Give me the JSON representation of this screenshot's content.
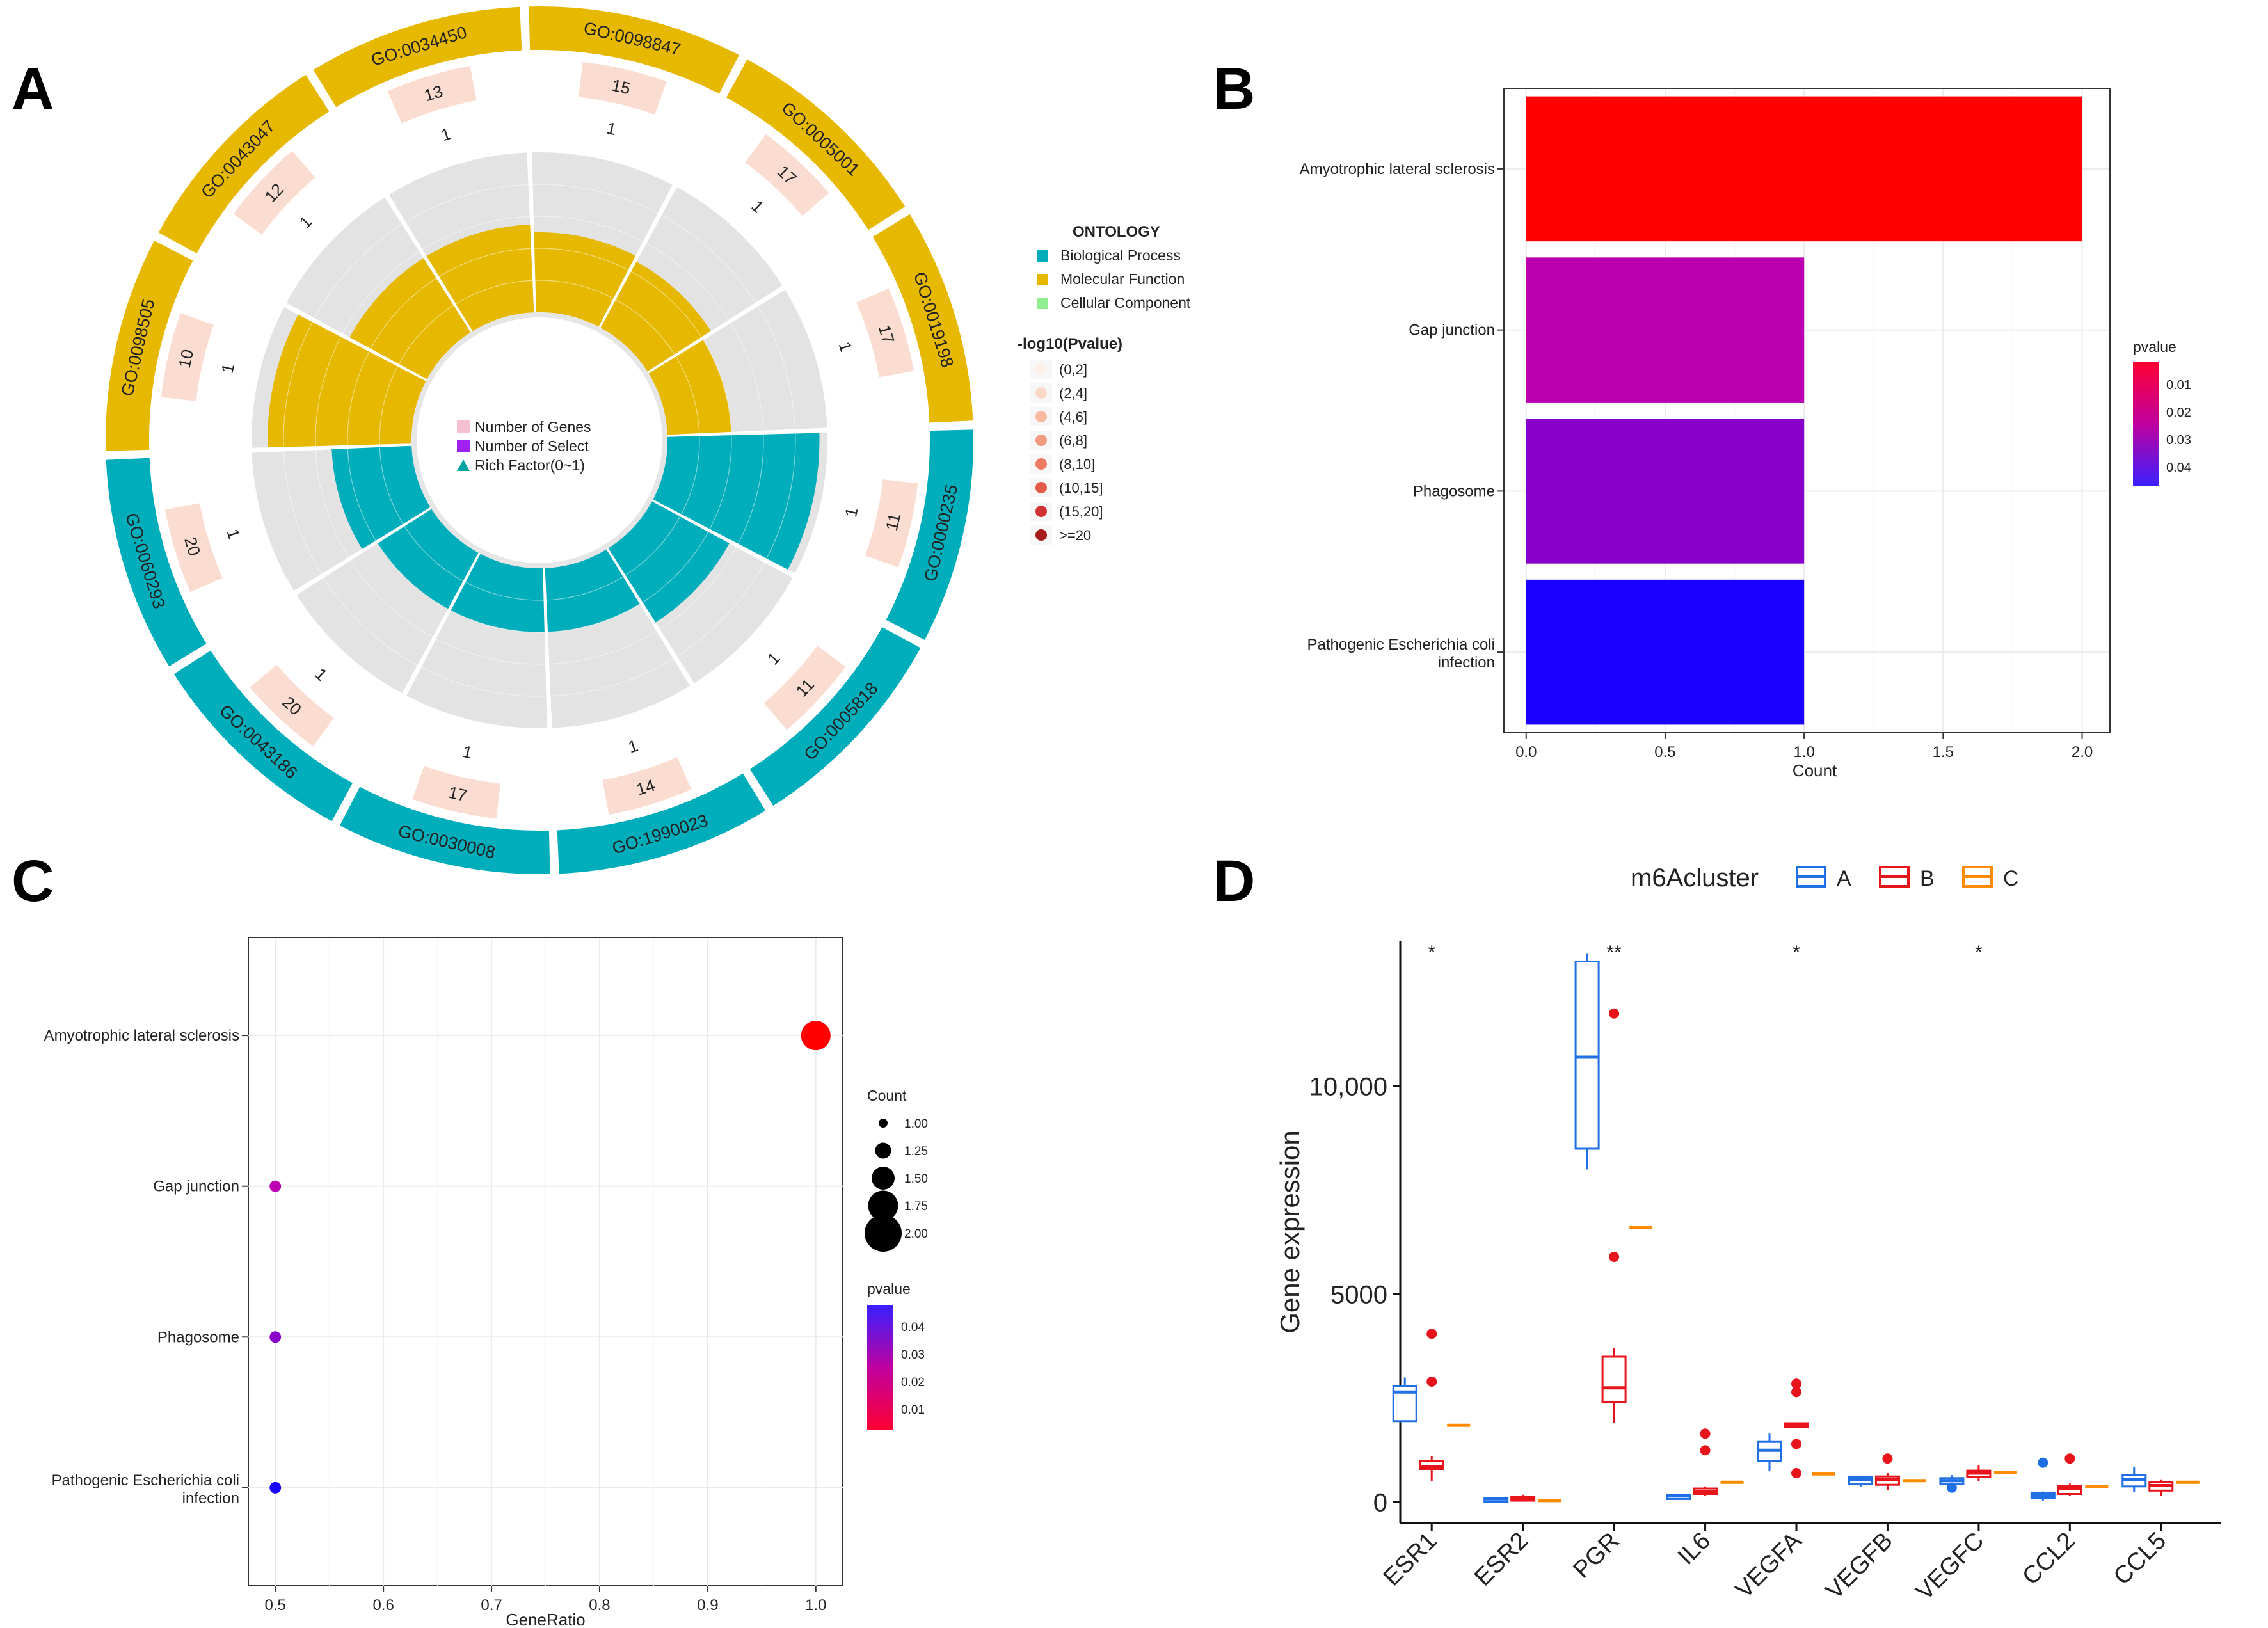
{
  "panels": {
    "A": "A",
    "B": "B",
    "C": "C",
    "D": "D"
  },
  "colors": {
    "bp": "#00adba",
    "mf": "#e6b800",
    "cc": "#90ee90",
    "ring_bg": "#e3e3e3",
    "gene_band": "#fbdcd0",
    "grid": "#ebebeb"
  },
  "chart_data": [
    {
      "type": "circular-go-plot",
      "panel": "A",
      "categories": [
        "GO:0098847",
        "GO:0005001",
        "GO:0019198",
        "GO:0000235",
        "GO:0005818",
        "GO:1990023",
        "GO:0030008",
        "GO:0043186",
        "GO:0060293",
        "GO:0098505",
        "GO:0043047",
        "GO:0034450"
      ],
      "ontology": [
        "MF",
        "MF",
        "MF",
        "BP",
        "BP",
        "BP",
        "BP",
        "BP",
        "BP",
        "MF",
        "MF",
        "MF"
      ],
      "number_of_genes": [
        "15",
        "17",
        "17",
        "11",
        "11",
        "14",
        "17",
        "20",
        "20",
        "10",
        "12",
        "13"
      ],
      "number_of_select": [
        "1",
        "1",
        "1",
        "1",
        "1",
        "1",
        "1",
        "1",
        "1",
        "1",
        "1",
        "1"
      ],
      "rich_factor": [
        0.5,
        0.47,
        0.4,
        0.95,
        0.55,
        0.4,
        0.4,
        0.4,
        0.5,
        0.9,
        0.55,
        0.55
      ],
      "legend": {
        "ontology_title": "ONTOLOGY",
        "ontology_items": [
          {
            "label": "Biological Process",
            "color": "#00adba"
          },
          {
            "label": "Molecular Function",
            "color": "#e6b800"
          },
          {
            "label": "Cellular Component",
            "color": "#90ee90"
          }
        ],
        "pvalue_title": "-log10(Pvalue)",
        "pvalue_items": [
          {
            "label": "(0,2]",
            "color": "#fdf0ea"
          },
          {
            "label": "(2,4]",
            "color": "#fbd8c8"
          },
          {
            "label": "(4,6]",
            "color": "#f8b9a0"
          },
          {
            "label": "(6,8]",
            "color": "#f29a80"
          },
          {
            "label": "(8,10]",
            "color": "#ec7b62"
          },
          {
            "label": "(10,15]",
            "color": "#e35a48"
          },
          {
            "label": "(15,20]",
            "color": "#cf3232"
          },
          {
            "label": ">=20",
            "color": "#a61c1c"
          }
        ],
        "center_items": [
          "Number of Genes",
          "Number of Select",
          "Rich Factor(0~1)"
        ]
      }
    },
    {
      "type": "bar",
      "panel": "B",
      "orientation": "horizontal",
      "categories": [
        "Amyotrophic lateral sclerosis",
        "Gap junction",
        "Phagosome",
        "Pathogenic Escherichia coli infection"
      ],
      "values": [
        2,
        1,
        1,
        1
      ],
      "pvalues": [
        0.003,
        0.026,
        0.032,
        0.045
      ],
      "xlabel": "Count",
      "xlim": [
        -0.08,
        2.1
      ],
      "xticks": [
        "0.0",
        "0.5",
        "1.0",
        "1.5",
        "2.0"
      ],
      "legend": {
        "title": "pvalue",
        "ticks": [
          "0.01",
          "0.02",
          "0.03",
          "0.04"
        ]
      }
    },
    {
      "type": "scatter",
      "panel": "C",
      "categories": [
        "Amyotrophic lateral sclerosis",
        "Gap junction",
        "Phagosome",
        "Pathogenic Escherichia coli infection"
      ],
      "x": [
        1.0,
        0.5,
        0.5,
        0.5
      ],
      "count": [
        2,
        1,
        1,
        1
      ],
      "pvalues": [
        0.003,
        0.026,
        0.032,
        0.045
      ],
      "xlabel": "GeneRatio",
      "xlim": [
        0.475,
        1.025
      ],
      "xticks": [
        "0.5",
        "0.6",
        "0.7",
        "0.8",
        "0.9",
        "1.0"
      ],
      "legend": {
        "count_title": "Count",
        "count_ticks": [
          "1.00",
          "1.25",
          "1.50",
          "1.75",
          "2.00"
        ],
        "pvalue_title": "pvalue",
        "pvalue_ticks": [
          "0.04",
          "0.03",
          "0.02",
          "0.01"
        ]
      }
    },
    {
      "type": "boxplot",
      "panel": "D",
      "legend_title": "m6Acluster",
      "groups": [
        {
          "name": "A",
          "color": "#1f6fe5"
        },
        {
          "name": "B",
          "color": "#e8141c"
        },
        {
          "name": "C",
          "color": "#ff8c00"
        }
      ],
      "categories": [
        "ESR1",
        "ESR2",
        "PGR",
        "IL6",
        "VEGFA",
        "VEGFB",
        "VEGFC",
        "CCL2",
        "CCL5"
      ],
      "significance": [
        "*",
        "",
        "**",
        "",
        "*",
        "",
        "*",
        "",
        ""
      ],
      "ylabel": "Gene expression",
      "ylim": [
        -500,
        13500
      ],
      "yticks": [
        "0",
        "5000",
        "10,000"
      ],
      "boxes": [
        [
          {
            "q1": 1950,
            "med": 2650,
            "q3": 2800,
            "lo": 1950,
            "hi": 3000,
            "out": []
          },
          {
            "q1": 800,
            "med": 850,
            "q3": 1000,
            "lo": 500,
            "hi": 1100,
            "out": [
              2900,
              4050
            ]
          },
          {
            "q1": 1850,
            "med": 1850,
            "q3": 1850,
            "lo": 1850,
            "hi": 1850,
            "out": []
          }
        ],
        [
          {
            "q1": 60,
            "med": 80,
            "q3": 100,
            "lo": 40,
            "hi": 120,
            "out": []
          },
          {
            "q1": 60,
            "med": 90,
            "q3": 130,
            "lo": 40,
            "hi": 180,
            "out": []
          },
          {
            "q1": 40,
            "med": 40,
            "q3": 40,
            "lo": 40,
            "hi": 40,
            "out": []
          }
        ],
        [
          {
            "q1": 8500,
            "med": 10700,
            "q3": 13000,
            "lo": 8000,
            "hi": 13200,
            "out": []
          },
          {
            "q1": 2400,
            "med": 2750,
            "q3": 3500,
            "lo": 1900,
            "hi": 3700,
            "out": [
              5900,
              11750
            ]
          },
          {
            "q1": 6600,
            "med": 6600,
            "q3": 6600,
            "lo": 6600,
            "hi": 6600,
            "out": []
          }
        ],
        [
          {
            "q1": 130,
            "med": 150,
            "q3": 170,
            "lo": 110,
            "hi": 180,
            "out": []
          },
          {
            "q1": 200,
            "med": 250,
            "q3": 330,
            "lo": 150,
            "hi": 380,
            "out": [
              1250,
              1650
            ]
          },
          {
            "q1": 480,
            "med": 480,
            "q3": 480,
            "lo": 480,
            "hi": 480,
            "out": []
          }
        ],
        [
          {
            "q1": 1000,
            "med": 1250,
            "q3": 1450,
            "lo": 750,
            "hi": 1650,
            "out": []
          },
          {
            "q1": 1800,
            "med": 1850,
            "q3": 1900,
            "lo": 1800,
            "hi": 1900,
            "out": [
              700,
              1400,
              2650,
              2850
            ]
          },
          {
            "q1": 680,
            "med": 680,
            "q3": 680,
            "lo": 680,
            "hi": 680,
            "out": []
          }
        ],
        [
          {
            "q1": 430,
            "med": 550,
            "q3": 600,
            "lo": 380,
            "hi": 640,
            "out": []
          },
          {
            "q1": 420,
            "med": 550,
            "q3": 620,
            "lo": 300,
            "hi": 700,
            "out": [
              1050
            ]
          },
          {
            "q1": 520,
            "med": 520,
            "q3": 520,
            "lo": 520,
            "hi": 520,
            "out": []
          }
        ],
        [
          {
            "q1": 430,
            "med": 520,
            "q3": 580,
            "lo": 300,
            "hi": 650,
            "out": [
              350
            ]
          },
          {
            "q1": 600,
            "med": 700,
            "q3": 760,
            "lo": 500,
            "hi": 900,
            "out": []
          },
          {
            "q1": 720,
            "med": 720,
            "q3": 720,
            "lo": 720,
            "hi": 720,
            "out": []
          }
        ],
        [
          {
            "q1": 100,
            "med": 170,
            "q3": 230,
            "lo": 40,
            "hi": 260,
            "out": [
              950
            ]
          },
          {
            "q1": 200,
            "med": 330,
            "q3": 400,
            "lo": 150,
            "hi": 450,
            "out": [
              1050
            ]
          },
          {
            "q1": 380,
            "med": 380,
            "q3": 380,
            "lo": 380,
            "hi": 380,
            "out": []
          }
        ],
        [
          {
            "q1": 380,
            "med": 550,
            "q3": 650,
            "lo": 250,
            "hi": 850,
            "out": []
          },
          {
            "q1": 280,
            "med": 400,
            "q3": 480,
            "lo": 150,
            "hi": 550,
            "out": []
          },
          {
            "q1": 480,
            "med": 480,
            "q3": 480,
            "lo": 480,
            "hi": 480,
            "out": []
          }
        ]
      ]
    }
  ]
}
